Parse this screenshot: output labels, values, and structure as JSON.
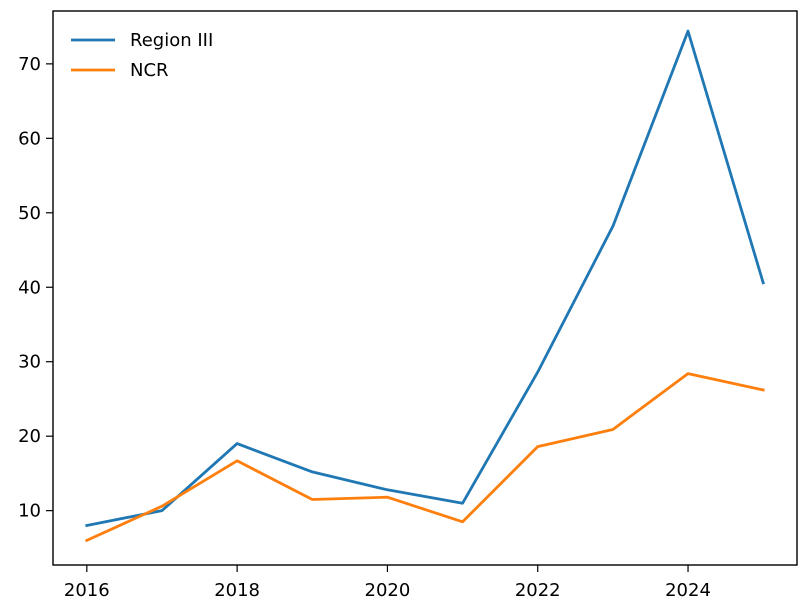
{
  "chart_data": {
    "type": "line",
    "title": "",
    "xlabel": "",
    "ylabel": "",
    "x": [
      2016,
      2017,
      2018,
      2019,
      2020,
      2021,
      2022,
      2023,
      2024,
      2025
    ],
    "xlim": [
      2015.55,
      2025.45
    ],
    "ylim": [
      2.7,
      77.1
    ],
    "xticks": [
      2016,
      2018,
      2020,
      2022,
      2024
    ],
    "yticks": [
      10,
      20,
      30,
      40,
      50,
      60,
      70
    ],
    "grid": false,
    "legend_position": "top-left",
    "series": [
      {
        "name": "Region III",
        "color": "#1f77b4",
        "values": [
          8.0,
          10.0,
          19.0,
          15.2,
          12.8,
          11.0,
          28.6,
          48.2,
          74.4,
          40.6
        ]
      },
      {
        "name": "NCR",
        "color": "#ff7f0e",
        "values": [
          6.0,
          10.6,
          16.7,
          11.5,
          11.8,
          8.5,
          18.6,
          20.9,
          28.4,
          26.2
        ]
      }
    ]
  }
}
